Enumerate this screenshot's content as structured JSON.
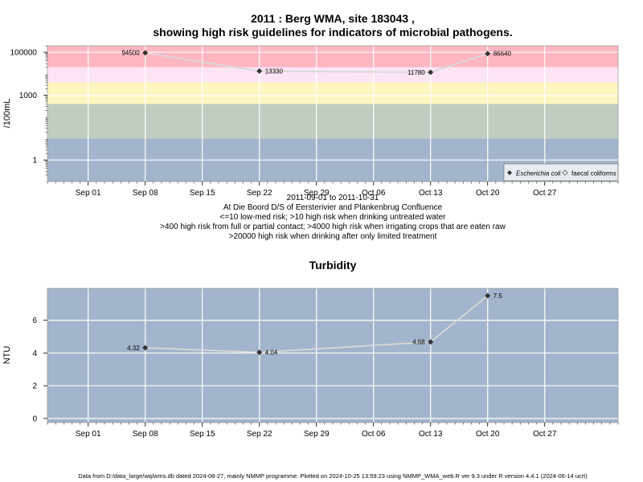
{
  "title": {
    "line1": "2011 : Berg WMA, site 183043 ,",
    "line2": "showing high risk guidelines for indicators of microbial pathogens."
  },
  "info_lines": [
    "2011-09-01 to 2011-10-31",
    "At Die Boord D/S of Eersterivier and Plankenbrug Confluence",
    "<=10 low-med risk; >10 high risk when drinking untreated water",
    ">400 high risk from full or partial contact; >4000 high risk when irrigating crops that are eaten raw",
    ">20000 high risk when drinking after only limited treatment"
  ],
  "footer": "Data from D:/data_large/wq/wms.db dated 2024-08-27, mainly NMMP programme. Plotted on 2024-10-25 13:59:23 using NMMP_WMA_web.R ver 9.3 under R version 4.4.1 (2024-06-14 ucrt)",
  "colors": {
    "panel_bg": "#a2b5cd",
    "gridline": "#ffffff",
    "series_line": "#d8d8d8",
    "marker": "#333333",
    "band_gt_20000": "#ffb6c1",
    "band_4000_20000": "#fce4f5",
    "band_400_4000": "#fdf5bf",
    "band_10_400": "#c1cdc1",
    "band_lt_10": "#a2b5cd"
  },
  "chart_data": [
    {
      "type": "scatter",
      "xlabel": "",
      "ylabel": "/100mL",
      "scale": "log10",
      "ylim": [
        0.1,
        200000
      ],
      "xlim": [
        "2011-08-27",
        "2011-11-05"
      ],
      "yticks": [
        {
          "value": 1,
          "label": "1"
        },
        {
          "value": 1000,
          "label": "1000"
        },
        {
          "value": 100000,
          "label": "100000"
        }
      ],
      "xticks": [
        {
          "date": "2011-09-01",
          "label": "Sep 01"
        },
        {
          "date": "2011-09-08",
          "label": "Sep 08"
        },
        {
          "date": "2011-09-15",
          "label": "Sep 15"
        },
        {
          "date": "2011-09-22",
          "label": "Sep 22"
        },
        {
          "date": "2011-09-29",
          "label": "Sep 29"
        },
        {
          "date": "2011-10-06",
          "label": "Oct 06"
        },
        {
          "date": "2011-10-13",
          "label": "Oct 13"
        },
        {
          "date": "2011-10-20",
          "label": "Oct 20"
        },
        {
          "date": "2011-10-27",
          "label": "Oct 27"
        }
      ],
      "bands": [
        {
          "from": 20000,
          "to": 200000,
          "color": "#ffb6c1"
        },
        {
          "from": 4000,
          "to": 20000,
          "color": "#fce4f5"
        },
        {
          "from": 400,
          "to": 4000,
          "color": "#fdf5bf"
        },
        {
          "from": 10,
          "to": 400,
          "color": "#c1cdc1"
        },
        {
          "from": 0.1,
          "to": 10,
          "color": "#a2b5cd"
        }
      ],
      "series": [
        {
          "name": "Escherichia coli",
          "points": [
            {
              "date": "2011-09-08",
              "value": 94500,
              "label": "94500",
              "label_side": "left"
            },
            {
              "date": "2011-09-22",
              "value": 13330,
              "label": "13330",
              "label_side": "right"
            },
            {
              "date": "2011-10-13",
              "value": 11780,
              "label": "11780",
              "label_side": "left"
            },
            {
              "date": "2011-10-20",
              "value": 86640,
              "label": "86640",
              "label_side": "right"
            }
          ]
        }
      ],
      "legend": {
        "position": "bottom-right",
        "entries": [
          {
            "label": "Escherichia coli",
            "marker": "filled-diamond",
            "italic": true
          },
          {
            "label": "faecal coliforms",
            "marker": "open-diamond",
            "italic": false
          }
        ]
      }
    },
    {
      "type": "line",
      "title": "Turbidity",
      "xlabel": "",
      "ylabel": "NTU",
      "ylim": [
        -0.25,
        7.95
      ],
      "xlim": [
        "2011-08-27",
        "2011-11-05"
      ],
      "yticks": [
        {
          "value": 0,
          "label": "0"
        },
        {
          "value": 2,
          "label": "2"
        },
        {
          "value": 4,
          "label": "4"
        },
        {
          "value": 6,
          "label": "6"
        }
      ],
      "xticks": [
        {
          "date": "2011-09-01",
          "label": "Sep 01"
        },
        {
          "date": "2011-09-08",
          "label": "Sep 08"
        },
        {
          "date": "2011-09-15",
          "label": "Sep 15"
        },
        {
          "date": "2011-09-22",
          "label": "Sep 22"
        },
        {
          "date": "2011-09-29",
          "label": "Sep 29"
        },
        {
          "date": "2011-10-06",
          "label": "Oct 06"
        },
        {
          "date": "2011-10-13",
          "label": "Oct 13"
        },
        {
          "date": "2011-10-20",
          "label": "Oct 20"
        },
        {
          "date": "2011-10-27",
          "label": "Oct 27"
        }
      ],
      "series": [
        {
          "name": "",
          "points": [
            {
              "date": "2011-09-08",
              "value": 4.32,
              "label": "4.32",
              "label_side": "left"
            },
            {
              "date": "2011-09-22",
              "value": 4.04,
              "label": "4.04",
              "label_side": "right"
            },
            {
              "date": "2011-10-13",
              "value": 4.68,
              "label": "4.68",
              "label_side": "left"
            },
            {
              "date": "2011-10-20",
              "value": 7.5,
              "label": "7.5",
              "label_side": "right"
            }
          ]
        }
      ]
    }
  ]
}
